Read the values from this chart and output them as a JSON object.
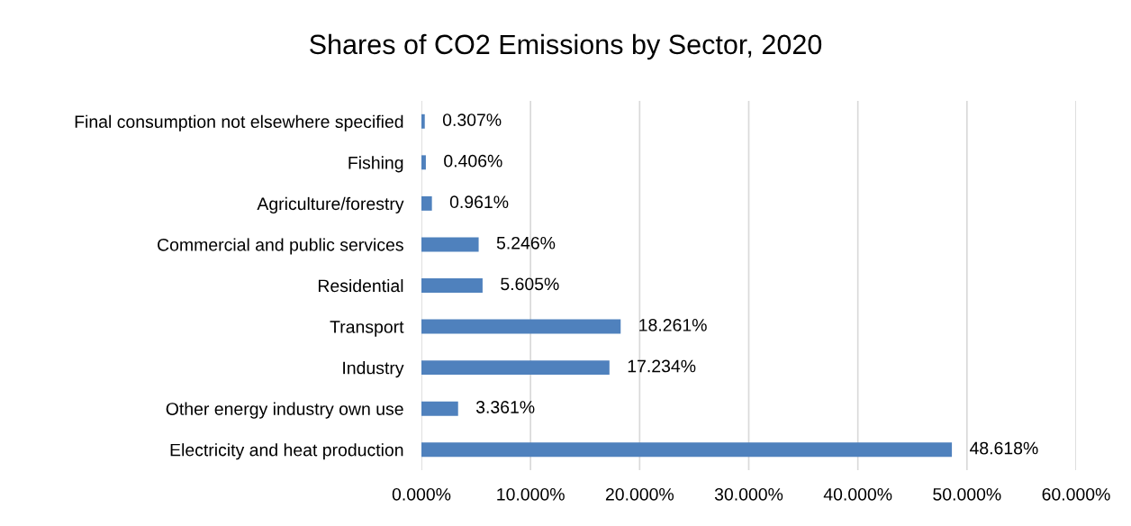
{
  "chart_data": {
    "type": "bar",
    "orientation": "horizontal",
    "title": "Shares of CO2 Emissions by Sector, 2020",
    "categories": [
      "Final consumption not elsewhere specified",
      "Fishing",
      "Agriculture/forestry",
      "Commercial and public services",
      "Residential",
      "Transport",
      "Industry",
      "Other energy industry own use",
      "Electricity and heat production"
    ],
    "values": [
      0.307,
      0.406,
      0.961,
      5.246,
      5.605,
      18.261,
      17.234,
      3.361,
      48.618
    ],
    "value_labels": [
      "0.307%",
      "0.406%",
      "0.961%",
      "5.246%",
      "5.605%",
      "18.261%",
      "17.234%",
      "3.361%",
      "48.618%"
    ],
    "color": "#4f81bd",
    "xlim": [
      0,
      60
    ],
    "xticks": [
      {
        "value": 0,
        "label": "0.000%"
      },
      {
        "value": 10,
        "label": "10.000%"
      },
      {
        "value": 20,
        "label": "20.000%"
      },
      {
        "value": 30,
        "label": "30.000%"
      },
      {
        "value": 40,
        "label": "40.000%"
      },
      {
        "value": 50,
        "label": "50.000%"
      },
      {
        "value": 60,
        "label": "60.000%"
      }
    ],
    "grid": "x",
    "legend": false
  }
}
